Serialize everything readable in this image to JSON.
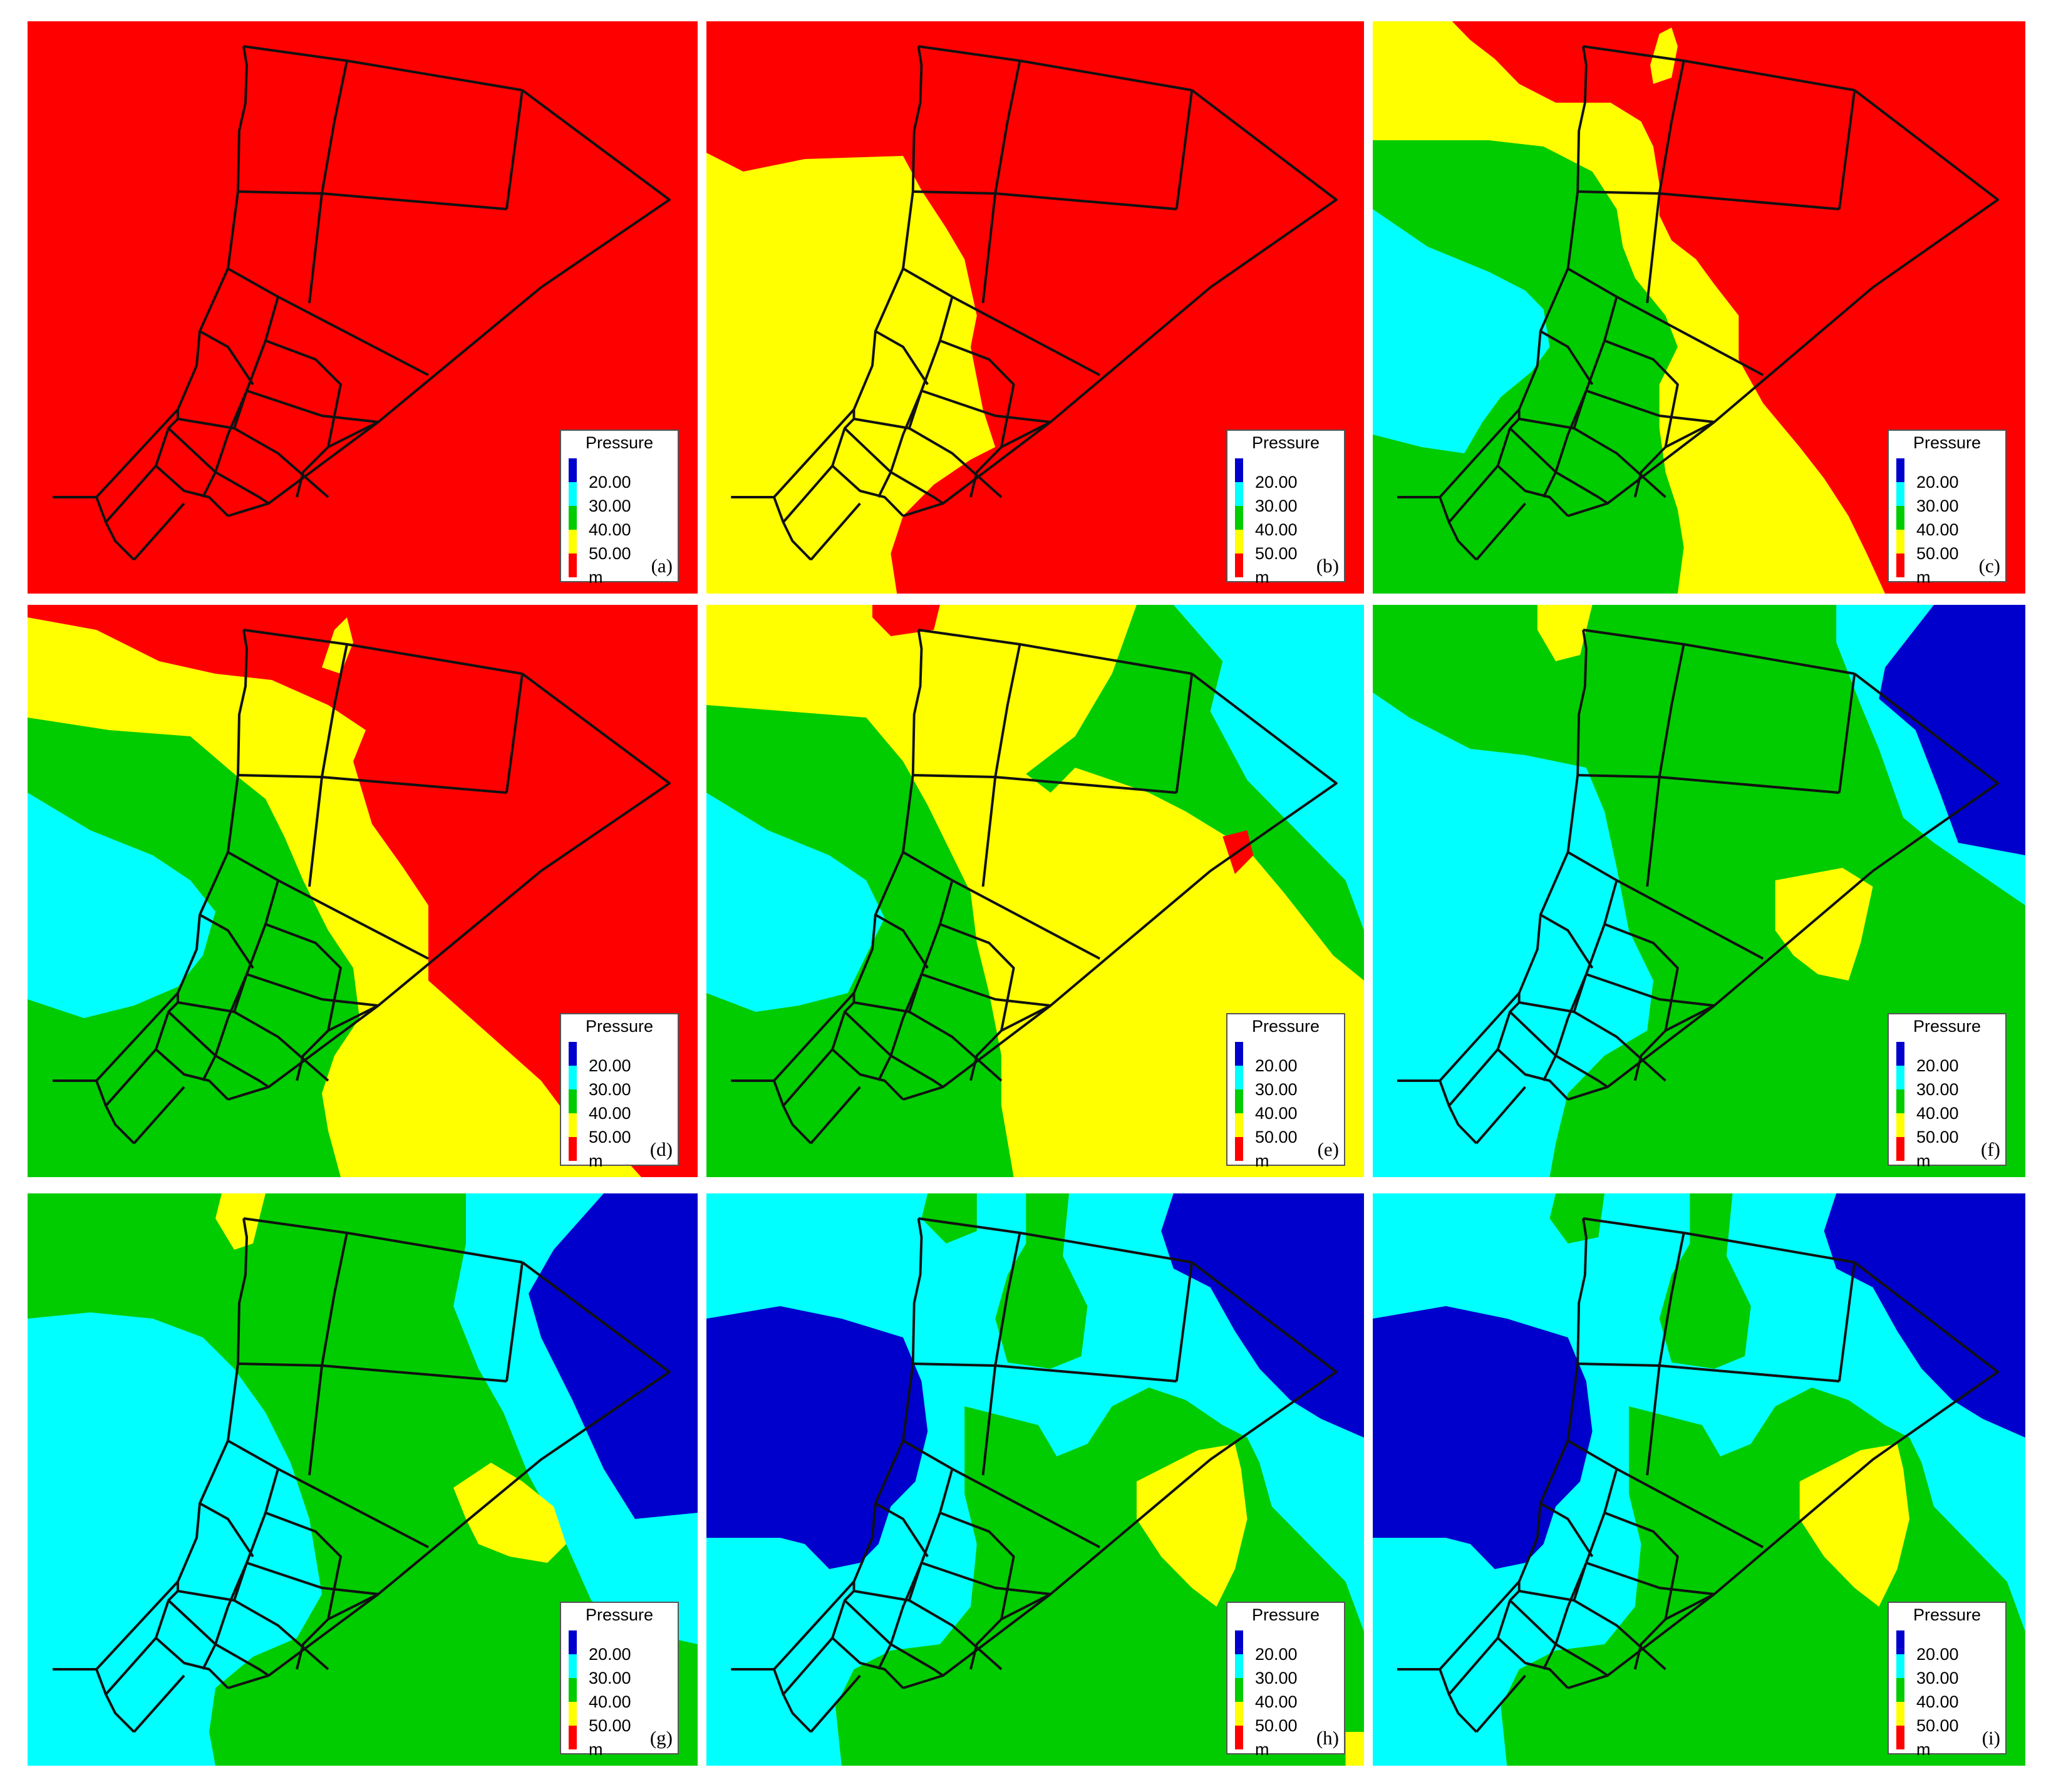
{
  "legend": {
    "title": "Pressure",
    "ticks": [
      "20.00",
      "30.00",
      "40.00",
      "50.00"
    ],
    "unit": "m"
  },
  "colors": {
    "class_20": "#0000cc",
    "class_30": "#00ffff",
    "class_40": "#00cc00",
    "class_50": "#ffff00",
    "class_over_50": "#ff0000",
    "pipe": "#111111"
  },
  "panels": [
    {
      "label": "(a)"
    },
    {
      "label": "(b)"
    },
    {
      "label": "(c)"
    },
    {
      "label": "(d)"
    },
    {
      "label": "(e)"
    },
    {
      "label": "(f)"
    },
    {
      "label": "(g)"
    },
    {
      "label": "(h)"
    },
    {
      "label": "(i)"
    }
  ]
}
